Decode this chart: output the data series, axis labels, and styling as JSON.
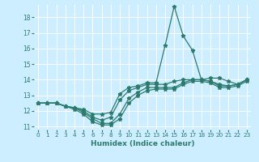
{
  "xlabel": "Humidex (Indice chaleur)",
  "bg_color": "#cceeff",
  "line_color": "#2d7a6e",
  "grid_color": "#ffffff",
  "xlim": [
    -0.5,
    23.5
  ],
  "ylim": [
    10.8,
    18.8
  ],
  "yticks": [
    11,
    12,
    13,
    14,
    15,
    16,
    17,
    18
  ],
  "xticks": [
    0,
    1,
    2,
    3,
    4,
    5,
    6,
    7,
    8,
    9,
    10,
    11,
    12,
    13,
    14,
    15,
    16,
    17,
    18,
    19,
    20,
    21,
    22,
    23
  ],
  "series": [
    [
      12.5,
      12.5,
      12.5,
      12.3,
      12.1,
      11.8,
      11.3,
      11.1,
      11.1,
      11.5,
      12.5,
      13.0,
      13.3,
      13.4,
      13.4,
      13.4,
      13.7,
      13.9,
      13.9,
      13.8,
      13.5,
      13.5,
      13.6,
      13.9
    ],
    [
      12.5,
      12.5,
      12.5,
      12.3,
      12.2,
      11.9,
      11.5,
      11.2,
      11.2,
      11.8,
      12.8,
      13.2,
      13.5,
      13.5,
      13.5,
      13.5,
      13.8,
      14.0,
      14.0,
      13.9,
      13.6,
      13.6,
      13.7,
      14.0
    ],
    [
      12.5,
      12.5,
      12.5,
      12.3,
      12.2,
      12.0,
      11.6,
      11.4,
      11.6,
      12.7,
      13.3,
      13.5,
      13.7,
      13.7,
      13.7,
      13.9,
      14.0,
      14.0,
      14.0,
      13.9,
      13.7,
      13.6,
      13.7,
      14.0
    ],
    [
      12.5,
      12.5,
      12.5,
      12.3,
      12.2,
      12.1,
      11.8,
      11.8,
      11.9,
      13.1,
      13.5,
      13.6,
      13.8,
      13.8,
      16.2,
      18.7,
      16.8,
      15.9,
      14.0,
      14.1,
      14.1,
      13.9,
      13.7,
      14.0
    ]
  ]
}
